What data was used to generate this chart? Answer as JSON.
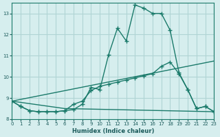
{
  "xlabel": "Humidex (Indice chaleur)",
  "ylabel": "",
  "background_color": "#d6eeee",
  "grid_color": "#b0d4d4",
  "line_color": "#1a7a6a",
  "xlim": [
    0,
    23
  ],
  "ylim": [
    8,
    13.5
  ],
  "xticks": [
    0,
    1,
    2,
    3,
    4,
    5,
    6,
    7,
    8,
    9,
    10,
    11,
    12,
    13,
    14,
    15,
    16,
    17,
    18,
    19,
    20,
    21,
    22,
    23
  ],
  "yticks": [
    8,
    9,
    10,
    11,
    12,
    13
  ],
  "line1_x": [
    0,
    1,
    2,
    3,
    4,
    5,
    6,
    7,
    8,
    9,
    10,
    11,
    12,
    13,
    14,
    15,
    16,
    17,
    18,
    19,
    20,
    21,
    22,
    23
  ],
  "line1_y": [
    8.85,
    8.6,
    8.4,
    8.35,
    8.35,
    8.35,
    8.4,
    8.45,
    8.7,
    9.5,
    9.4,
    11.05,
    12.3,
    11.7,
    13.4,
    13.25,
    13.0,
    13.0,
    12.2,
    10.2,
    9.4,
    8.5,
    8.6,
    8.35
  ],
  "line2_x": [
    0,
    1,
    2,
    3,
    4,
    5,
    6,
    7,
    8,
    9,
    10,
    11,
    12,
    13,
    14,
    15,
    16,
    17,
    18,
    19,
    20,
    21,
    22,
    23
  ],
  "line2_y": [
    8.85,
    8.6,
    8.4,
    8.35,
    8.35,
    8.35,
    8.4,
    8.7,
    8.85,
    9.35,
    9.55,
    9.65,
    9.75,
    9.85,
    9.95,
    10.05,
    10.15,
    10.5,
    10.7,
    10.15,
    9.4,
    8.5,
    8.6,
    8.35
  ],
  "line3_x": [
    0,
    6,
    23
  ],
  "line3_y": [
    8.85,
    8.5,
    8.35
  ],
  "line4_x": [
    0,
    23
  ],
  "line4_y": [
    8.85,
    10.75
  ]
}
